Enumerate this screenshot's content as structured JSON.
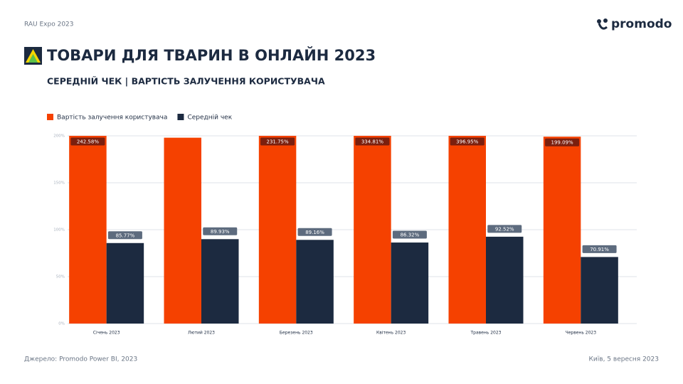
{
  "header": {
    "event": "RAU Expo 2023",
    "brand": "promodo",
    "title": "ТОВАРИ ДЛЯ ТВАРИН В ОНЛАЙН 2023",
    "subtitle": "СЕРЕДНІЙ ЧЕК | ВАРТІСТЬ ЗАЛУЧЕННЯ КОРИСТУВАЧА"
  },
  "chart_data": {
    "type": "bar",
    "categories": [
      "Січень 2023",
      "Лютий 2023",
      "Березень 2023",
      "Квітень 2023",
      "Травень 2023",
      "Червень 2023"
    ],
    "series": [
      {
        "name": "Вартість залучення користувача",
        "color": "#f54100",
        "label_color": "#7a1f0e",
        "values": [
          242.58,
          198,
          231.75,
          334.81,
          396.95,
          199.09
        ],
        "value_labels": [
          "242.58%",
          null,
          "231.75%",
          "334.81%",
          "396.95%",
          "199.09%"
        ]
      },
      {
        "name": "Середній чек",
        "color": "#1c2a40",
        "label_color": "#5d6b7e",
        "values": [
          85.77,
          89.93,
          89.16,
          86.32,
          92.52,
          70.91
        ],
        "value_labels": [
          "85.77%",
          "89.93%",
          "89.16%",
          "86.32%",
          "92.52%",
          "70.91%"
        ]
      }
    ],
    "ylim": [
      0,
      200
    ],
    "yticks": [
      {
        "value": 0,
        "label": "0%"
      },
      {
        "value": 50,
        "label": "50%"
      },
      {
        "value": 100,
        "label": "100%"
      },
      {
        "value": 150,
        "label": "150%"
      },
      {
        "value": 200,
        "label": "200%"
      }
    ],
    "grid": true,
    "legend": "top-left"
  },
  "footer": {
    "source": "Джерело: Promodo Power BI, 2023",
    "place_date": "Київ, 5 вересня 2023"
  }
}
